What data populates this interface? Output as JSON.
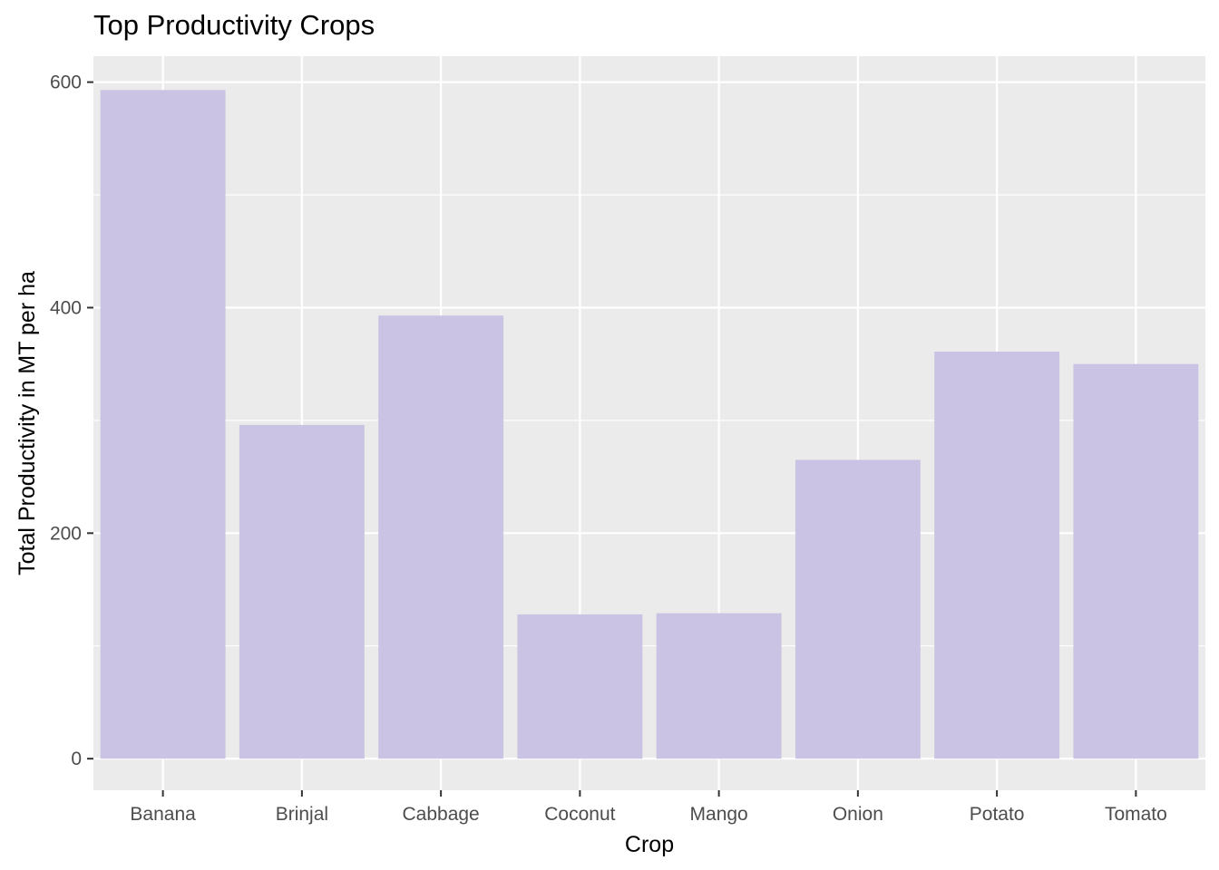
{
  "chart_data": {
    "type": "bar",
    "title": "Top Productivity Crops",
    "xlabel": "Crop",
    "ylabel": "Total Productivity in MT per ha",
    "categories": [
      "Banana",
      "Brinjal",
      "Cabbage",
      "Coconut",
      "Mango",
      "Onion",
      "Potato",
      "Tomato"
    ],
    "values": [
      593,
      296,
      393,
      128,
      129,
      265,
      361,
      350
    ],
    "ylim": [
      -28,
      623
    ],
    "yticks": [
      0,
      200,
      400,
      600
    ],
    "ytick_labels": [
      "0",
      "200",
      "400",
      "600"
    ],
    "grid": true,
    "legend": "none",
    "colors": {
      "bar": "#cbc3e3",
      "panel": "#ebebeb",
      "grid": "#ffffff",
      "tick_text": "#4d4d4d",
      "tick_mark": "#333333"
    }
  }
}
